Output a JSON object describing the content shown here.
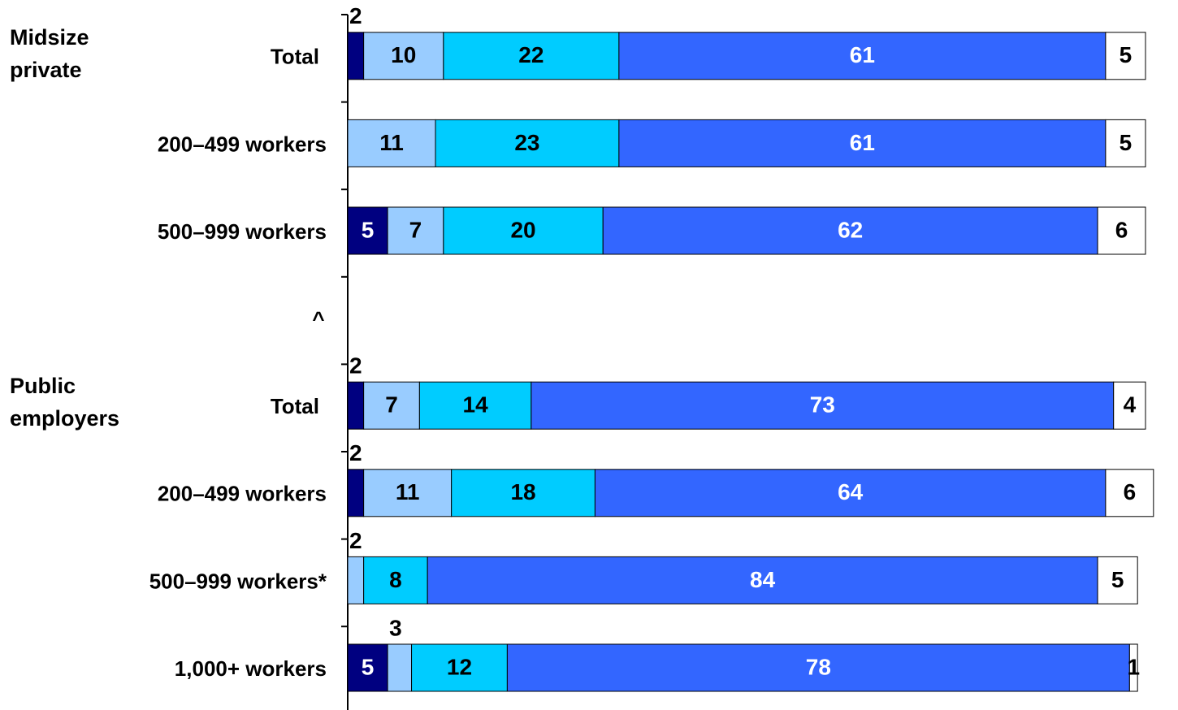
{
  "chart_data": {
    "type": "stacked-barh",
    "categories": [
      "Total",
      "200–499 workers",
      "500–999 workers",
      "^",
      "Total",
      "200–499 workers",
      "500–999 workers*",
      "1,000+ workers"
    ],
    "group_labels": [
      [
        "Midsize",
        "private"
      ],
      [
        "Public",
        "employers"
      ]
    ],
    "xlim": [
      0,
      100
    ],
    "series": [
      {
        "color": "#000080",
        "values": [
          2,
          null,
          5,
          null,
          2,
          2,
          null,
          5
        ]
      },
      {
        "color": "#99ccff",
        "values": [
          10,
          11,
          7,
          null,
          7,
          11,
          2,
          3
        ]
      },
      {
        "color": "#00ccff",
        "values": [
          22,
          23,
          20,
          null,
          14,
          18,
          8,
          12
        ]
      },
      {
        "color": "#3366ff",
        "values": [
          61,
          61,
          62,
          null,
          73,
          64,
          84,
          78
        ]
      },
      {
        "color": "#ffffff",
        "values": [
          5,
          5,
          6,
          null,
          4,
          6,
          5,
          1
        ]
      }
    ]
  }
}
